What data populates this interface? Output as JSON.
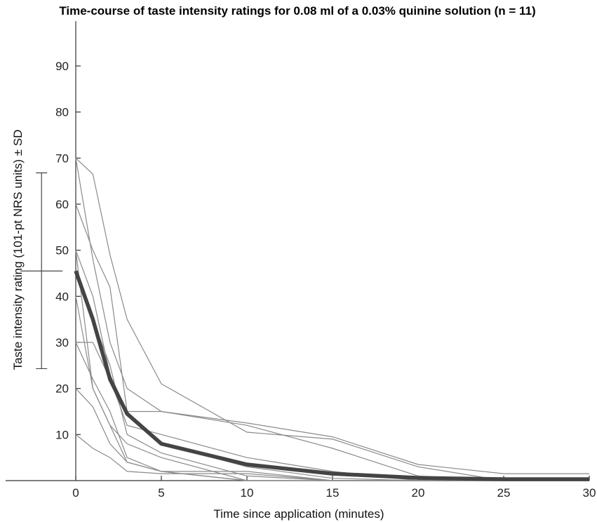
{
  "chart_data": {
    "type": "line",
    "title": "Time-course of taste intensity ratings for 0.08 ml of a 0.03% quinine solution (n = 11)",
    "xlabel": "Time since application (minutes)",
    "ylabel": "Taste intensity rating (101-pt NRS units) ± SD",
    "xlim": [
      0,
      30
    ],
    "ylim": [
      0,
      100
    ],
    "x_ticks": [
      "0",
      "5",
      "10",
      "15",
      "20",
      "25",
      "30"
    ],
    "y_ticks": [
      "10",
      "20",
      "30",
      "40",
      "50",
      "60",
      "70",
      "80",
      "90"
    ],
    "x": [
      0,
      1,
      2,
      3,
      5,
      10,
      15,
      20,
      25,
      30
    ],
    "grid": false,
    "series": [
      {
        "values": [
          70,
          66.5,
          49,
          35,
          21,
          10.5,
          9,
          3,
          0,
          0
        ]
      },
      {
        "values": [
          70,
          48,
          30,
          20,
          15,
          12.5,
          9.5,
          3.5,
          1.5,
          1.5
        ]
      },
      {
        "values": [
          60,
          50,
          42,
          15,
          15,
          12,
          7,
          1,
          0,
          0
        ]
      },
      {
        "values": [
          50,
          40,
          23,
          15,
          8,
          3,
          0.5,
          0,
          0,
          0
        ]
      },
      {
        "values": [
          45,
          35,
          25,
          10,
          6,
          1,
          0,
          0,
          0,
          0
        ]
      },
      {
        "values": [
          40,
          20,
          12,
          8,
          5,
          0,
          0,
          0,
          0,
          0
        ]
      },
      {
        "values": [
          30,
          30,
          22,
          12,
          10,
          5,
          2,
          0,
          0,
          0
        ]
      },
      {
        "values": [
          30,
          22,
          15,
          5,
          2,
          2,
          0,
          0,
          0,
          0
        ]
      },
      {
        "values": [
          20,
          16,
          8,
          4,
          2,
          0,
          0,
          0,
          0,
          0
        ]
      },
      {
        "values": [
          50,
          20,
          12,
          4,
          2,
          0,
          0,
          0,
          0,
          0
        ]
      },
      {
        "values": [
          10,
          7,
          5,
          2,
          1.5,
          1.5,
          0,
          0,
          0,
          0
        ]
      }
    ],
    "mean": {
      "x": [
        0,
        1,
        2,
        3,
        5,
        10,
        15,
        20,
        25,
        30
      ],
      "values": [
        45.5,
        35,
        22,
        14.5,
        8,
        3.5,
        1.5,
        0.6,
        0.3,
        0.3
      ]
    },
    "sd": {
      "x": -2,
      "center": 45.5,
      "lower": 24.3,
      "upper": 66.8
    }
  }
}
